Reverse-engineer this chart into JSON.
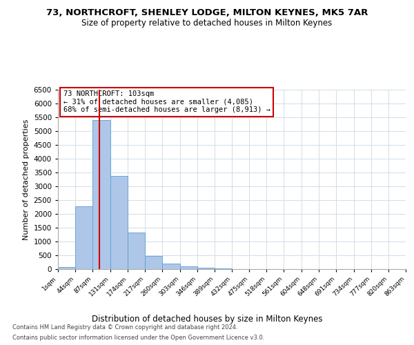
{
  "title_line1": "73, NORTHCROFT, SHENLEY LODGE, MILTON KEYNES, MK5 7AR",
  "title_line2": "Size of property relative to detached houses in Milton Keynes",
  "xlabel": "Distribution of detached houses by size in Milton Keynes",
  "ylabel": "Number of detached properties",
  "footer_line1": "Contains HM Land Registry data © Crown copyright and database right 2024.",
  "footer_line2": "Contains public sector information licensed under the Open Government Licence v3.0.",
  "annotation_line1": "73 NORTHCROFT: 103sqm",
  "annotation_line2": "← 31% of detached houses are smaller (4,085)",
  "annotation_line3": "68% of semi-detached houses are larger (8,913) →",
  "property_size_sqm": 103,
  "bin_edges": [
    1,
    44,
    87,
    131,
    174,
    217,
    260,
    303,
    346,
    389,
    432,
    475,
    518,
    561,
    604,
    648,
    691,
    734,
    777,
    820,
    863
  ],
  "bar_heights": [
    75,
    2280,
    5400,
    3380,
    1320,
    475,
    195,
    100,
    55,
    30,
    10,
    0,
    0,
    0,
    0,
    0,
    0,
    0,
    0,
    0
  ],
  "bar_color": "#aec6e8",
  "bar_edge_color": "#5a9fd4",
  "vline_x": 103,
  "vline_color": "#cc0000",
  "annotation_box_color": "#cc0000",
  "ylim": [
    0,
    6500
  ],
  "yticks": [
    0,
    500,
    1000,
    1500,
    2000,
    2500,
    3000,
    3500,
    4000,
    4500,
    5000,
    5500,
    6000,
    6500
  ],
  "background_color": "#ffffff",
  "grid_color": "#d0dde8",
  "tick_labels": [
    "1sqm",
    "44sqm",
    "87sqm",
    "131sqm",
    "174sqm",
    "217sqm",
    "260sqm",
    "303sqm",
    "346sqm",
    "389sqm",
    "432sqm",
    "475sqm",
    "518sqm",
    "561sqm",
    "604sqm",
    "648sqm",
    "691sqm",
    "734sqm",
    "777sqm",
    "820sqm",
    "863sqm"
  ]
}
